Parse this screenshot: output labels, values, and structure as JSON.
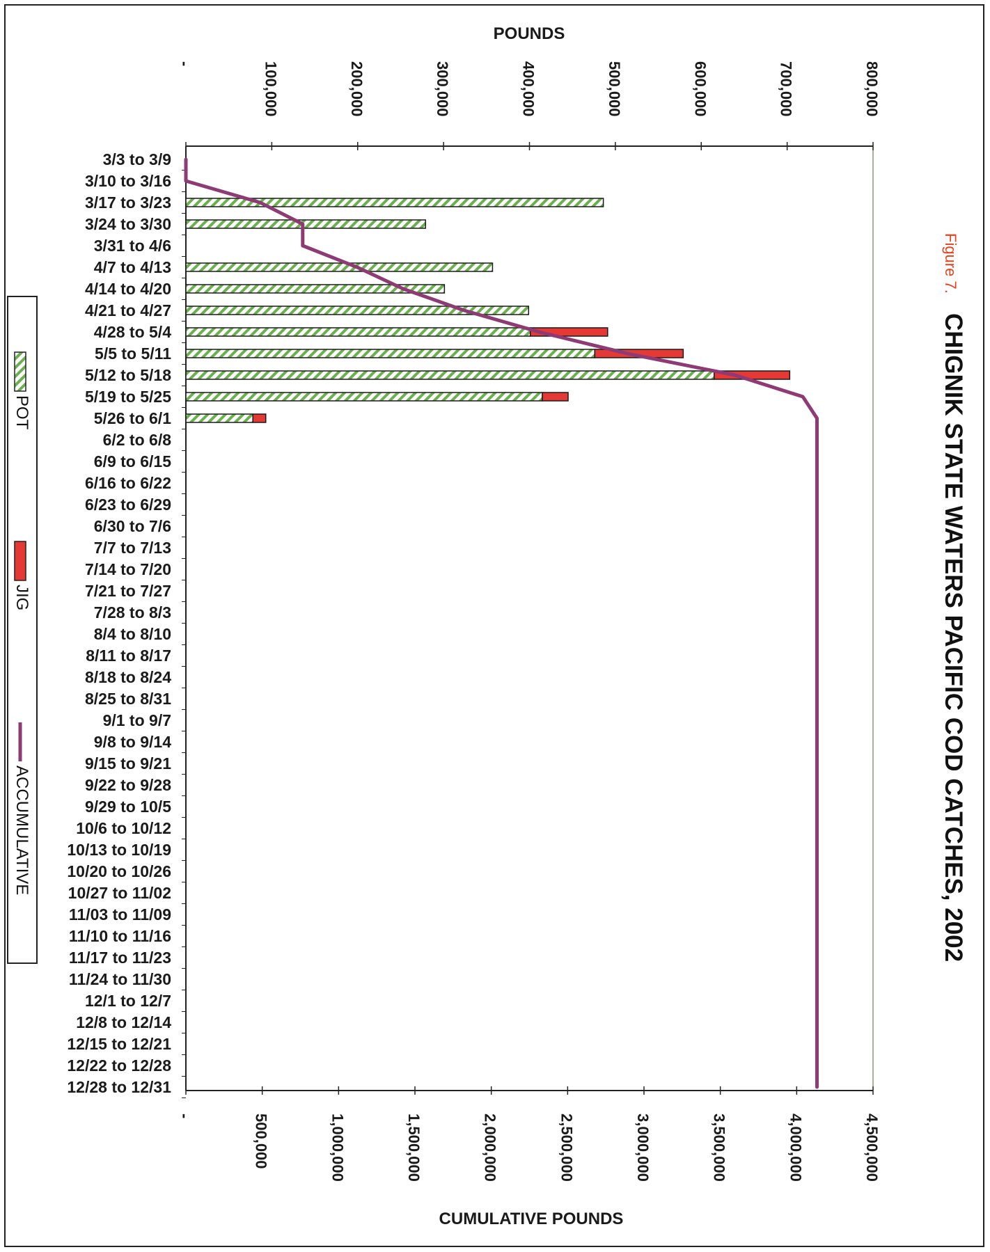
{
  "figure_label": "Figure 7.",
  "chart_data": {
    "type": "bar",
    "orientation": "horizontal",
    "stacked": true,
    "title": "CHIGNIK STATE WATERS PACIFIC COD CATCHES, 2002",
    "top_axis": {
      "label": "POUNDS",
      "range": [
        0,
        800000
      ],
      "ticks": [
        "-",
        "100,000",
        "200,000",
        "300,000",
        "400,000",
        "500,000",
        "600,000",
        "700,000",
        "800,000"
      ]
    },
    "bottom_axis": {
      "label": "CUMULATIVE POUNDS",
      "range": [
        0,
        4500000
      ],
      "ticks": [
        "-",
        "500,000",
        "1,000,000",
        "1,500,000",
        "2,000,000",
        "2,500,000",
        "3,000,000",
        "3,500,000",
        "4,000,000",
        "4,500,000"
      ]
    },
    "categories": [
      "3/3 to 3/9",
      "3/10 to 3/16",
      "3/17 to 3/23",
      "3/24 to 3/30",
      "3/31 to 4/6",
      "4/7 to 4/13",
      "4/14 to 4/20",
      "4/21 to 4/27",
      "4/28 to 5/4",
      "5/5 to 5/11",
      "5/12 to 5/18",
      "5/19 to 5/25",
      "5/26 to 6/1",
      "6/2 to 6/8",
      "6/9 to 6/15",
      "6/16 to 6/22",
      "6/23 to 6/29",
      "6/30 to 7/6",
      "7/7 to 7/13",
      "7/14 to 7/20",
      "7/21 to 7/27",
      "7/28 to 8/3",
      "8/4 to 8/10",
      "8/11 to 8/17",
      "8/18 to 8/24",
      "8/25 to 8/31",
      "9/1 to 9/7",
      "9/8 to 9/14",
      "9/15 to 9/21",
      "9/22 to 9/28",
      "9/29 to 10/5",
      "10/6 to 10/12",
      "10/13 to 10/19",
      "10/20 to 10/26",
      "10/27 to 11/02",
      "11/03 to 11/09",
      "11/10 to 11/16",
      "11/17 to 11/23",
      "11/24 to 11/30",
      "12/1 to 12/7",
      "12/8 to 12/14",
      "12/15 to 12/21",
      "12/22 to 12/28",
      "12/28 to 12/31"
    ],
    "series": [
      {
        "name": "POT",
        "axis": "top",
        "color": "#6ab04c",
        "values": [
          0,
          0,
          486000,
          279000,
          0,
          357000,
          301000,
          399000,
          401000,
          476000,
          615000,
          415000,
          78000,
          0,
          0,
          0,
          0,
          0,
          0,
          0,
          0,
          0,
          0,
          0,
          0,
          0,
          0,
          0,
          0,
          0,
          0,
          0,
          0,
          0,
          0,
          0,
          0,
          0,
          0,
          0,
          0,
          0,
          0,
          0
        ]
      },
      {
        "name": "JIG",
        "axis": "top",
        "color": "#e53935",
        "values": [
          0,
          0,
          0,
          0,
          0,
          0,
          0,
          0,
          90000,
          103000,
          88000,
          30000,
          15000,
          0,
          0,
          0,
          0,
          0,
          0,
          0,
          0,
          0,
          0,
          0,
          0,
          0,
          0,
          0,
          0,
          0,
          0,
          0,
          0,
          0,
          0,
          0,
          0,
          0,
          0,
          0,
          0,
          0,
          0,
          0
        ]
      },
      {
        "name": "ACCUMULATIVE",
        "axis": "bottom",
        "type": "line",
        "color": "#8e3a74",
        "values": [
          0,
          0,
          486000,
          765000,
          765000,
          1122000,
          1423000,
          1822000,
          2313000,
          2892000,
          3595000,
          4040000,
          4133000,
          4133000,
          4133000,
          4133000,
          4133000,
          4133000,
          4133000,
          4133000,
          4133000,
          4133000,
          4133000,
          4133000,
          4133000,
          4133000,
          4133000,
          4133000,
          4133000,
          4133000,
          4133000,
          4133000,
          4133000,
          4133000,
          4133000,
          4133000,
          4133000,
          4133000,
          4133000,
          4133000,
          4133000,
          4133000,
          4133000,
          4133000
        ]
      }
    ],
    "legend": {
      "position": "left",
      "items": [
        "POT",
        "JIG",
        "ACCUMULATIVE"
      ]
    }
  }
}
